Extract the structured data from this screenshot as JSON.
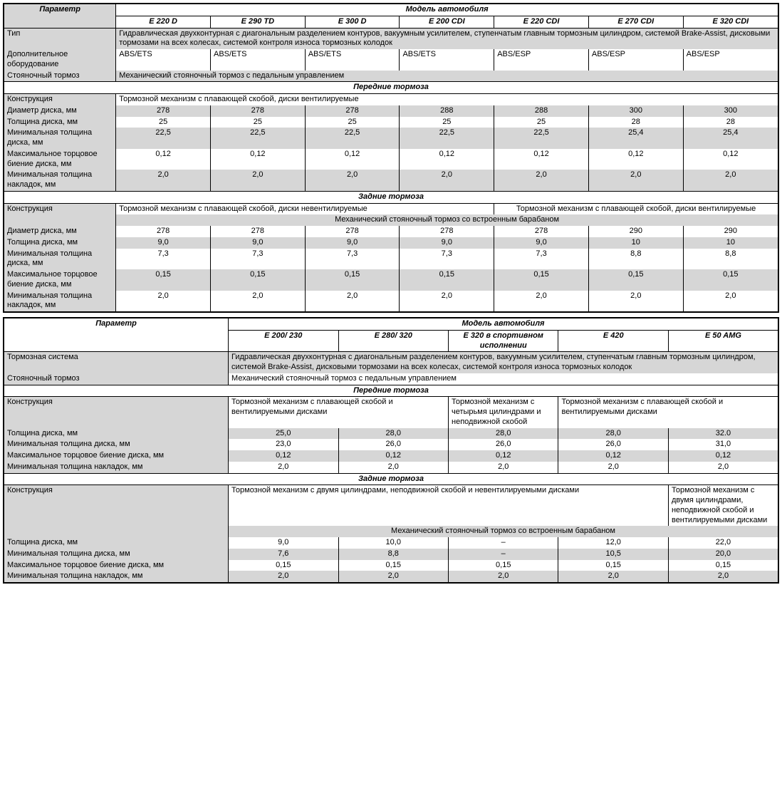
{
  "table1": {
    "param_header": "Параметр",
    "model_header": "Модель автомобиля",
    "models": [
      "E 220 D",
      "E 290 TD",
      "E 300 D",
      "E 200 CDI",
      "E 220 CDI",
      "E 270 CDI",
      "E 320 CDI"
    ],
    "rows_top": [
      {
        "label": "Тип",
        "span_text": "Гидравлическая двухконтурная с диагональным разделением контуров, вакуумным усилителем, ступенчатым главным тормозным цилиндром, системой Brake-Assist, дисковыми тормозами на всех колесах, системой контроля износа тормозных колодок",
        "shade": true
      },
      {
        "label": "Дополнительное оборудование",
        "cells": [
          "ABS/ETS",
          "ABS/ETS",
          "ABS/ETS",
          "ABS/ETS",
          "ABS/ESP",
          "ABS/ESP",
          "ABS/ESP"
        ],
        "shade": false,
        "left": true
      },
      {
        "label": "Стояночный тормоз",
        "span_text": "Механический стояночный тормоз с педальным управлением",
        "shade": true
      }
    ],
    "section_front": "Передние тормоза",
    "rows_front": [
      {
        "label": "Конструкция",
        "span_text": "Тормозной механизм с плавающей скобой, диски вентилируемые",
        "shade": false,
        "left": true
      },
      {
        "label": "Диаметр диска, мм",
        "cells": [
          "278",
          "278",
          "278",
          "288",
          "288",
          "300",
          "300"
        ],
        "shade": true
      },
      {
        "label": "Толщина диска, мм",
        "cells": [
          "25",
          "25",
          "25",
          "25",
          "25",
          "28",
          "28"
        ],
        "shade": false
      },
      {
        "label": "Минимальная толщина диска, мм",
        "cells": [
          "22,5",
          "22,5",
          "22,5",
          "22,5",
          "22,5",
          "25,4",
          "25,4"
        ],
        "shade": true
      },
      {
        "label": "Максимальное торцовое биение диска, мм",
        "cells": [
          "0,12",
          "0,12",
          "0,12",
          "0,12",
          "0,12",
          "0,12",
          "0,12"
        ],
        "shade": false
      },
      {
        "label": "Минимальная толщина накладок, мм",
        "cells": [
          "2,0",
          "2,0",
          "2,0",
          "2,0",
          "2,0",
          "2,0",
          "2,0"
        ],
        "shade": true
      }
    ],
    "section_rear": "Задние тормоза",
    "rear_constr_label": "Конструкция",
    "rear_constr_left": "Тормозной механизм с плавающей скобой, диски невентилируемые",
    "rear_constr_right": "Тормозной механизм с плавающей скобой, диски вентилируемые",
    "rear_constr_sub": "Механический стояночный тормоз со встроенным барабаном",
    "rows_rear": [
      {
        "label": "Диаметр диска, мм",
        "cells": [
          "278",
          "278",
          "278",
          "278",
          "278",
          "290",
          "290"
        ],
        "shade": false
      },
      {
        "label": "Толщина диска, мм",
        "cells": [
          "9,0",
          "9,0",
          "9,0",
          "9,0",
          "9,0",
          "10",
          "10"
        ],
        "shade": true
      },
      {
        "label": "Минимальная толщина диска, мм",
        "cells": [
          "7,3",
          "7,3",
          "7,3",
          "7,3",
          "7,3",
          "8,8",
          "8,8"
        ],
        "shade": false
      },
      {
        "label": "Максимальное торцовое биение диска, мм",
        "cells": [
          "0,15",
          "0,15",
          "0,15",
          "0,15",
          "0,15",
          "0,15",
          "0,15"
        ],
        "shade": true
      },
      {
        "label": "Минимальная толщина накладок, мм",
        "cells": [
          "2,0",
          "2,0",
          "2,0",
          "2,0",
          "2,0",
          "2,0",
          "2,0"
        ],
        "shade": false
      }
    ]
  },
  "table2": {
    "param_header": "Параметр",
    "model_header": "Модель автомобиля",
    "models": [
      "E 200/ 230",
      "E 280/ 320",
      "E 320 в спортивном исполнении",
      "E 420",
      "E 50 AMG"
    ],
    "rows_top": [
      {
        "label": "Тормозная система",
        "span_text": "Гидравлическая двухконтурная с диагональным разделением контуров, вакуумным усилителем, ступенчатым главным тормозным цилиндром, системой Brake-Assist, дисковыми тормозами на всех колесах, системой контроля износа тормозных колодок",
        "shade": true
      },
      {
        "label": "Стояночный тормоз",
        "span_text": "Механический стояночный тормоз с педальным управлением",
        "shade": false
      }
    ],
    "section_front": "Передние тормоза",
    "front_constr_label": "Конструкция",
    "front_constr": [
      "Тормозной механизм с плавающей скобой и вентилируемыми дисками",
      "Тормозной механизм с четырьмя цилиндрами и неподвижной скобой",
      "Тормозной механизм с плавающей скобой и вентилируемыми дисками"
    ],
    "rows_front": [
      {
        "label": "Толщина диска, мм",
        "cells": [
          "25,0",
          "28,0",
          "28,0",
          "28,0",
          "32.0"
        ],
        "shade": true
      },
      {
        "label": "Минимальная толщина диска, мм",
        "cells": [
          "23,0",
          "26,0",
          "26,0",
          "26,0",
          "31,0"
        ],
        "shade": false
      },
      {
        "label": "Максимальное торцовое биение диска, мм",
        "cells": [
          "0,12",
          "0,12",
          "0,12",
          "0,12",
          "0,12"
        ],
        "shade": true
      },
      {
        "label": "Минимальная толщина накладок, мм",
        "cells": [
          "2,0",
          "2,0",
          "2,0",
          "2,0",
          "2,0"
        ],
        "shade": false
      }
    ],
    "section_rear": "Задние тормоза",
    "rear_constr_label": "Конструкция",
    "rear_constr_left": "Тормозной механизм с двумя цилиндрами, неподвижной скобой и невентилируемыми дисками",
    "rear_constr_right": "Тормозной механизм с двумя цилиндрами, неподвижной скобой и вентилируемыми дисками",
    "rear_constr_sub": "Механический стояночный тормоз со встроенным барабаном",
    "rows_rear": [
      {
        "label": "Толщина диска, мм",
        "cells": [
          "9,0",
          "10,0",
          "–",
          "12,0",
          "22,0"
        ],
        "shade": false
      },
      {
        "label": "Минимальная толщина диска, мм",
        "cells": [
          "7,6",
          "8,8",
          "–",
          "10,5",
          "20,0"
        ],
        "shade": true
      },
      {
        "label": "Максимальное торцовое биение диска, мм",
        "cells": [
          "0,15",
          "0,15",
          "0,15",
          "0,15",
          "0,15"
        ],
        "shade": false
      },
      {
        "label": "Минимальная толщина накладок, мм",
        "cells": [
          "2,0",
          "2,0",
          "2,0",
          "2,0",
          "2,0"
        ],
        "shade": true
      }
    ]
  }
}
